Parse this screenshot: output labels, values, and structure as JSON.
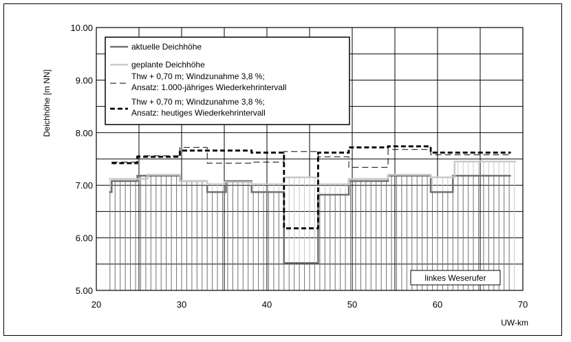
{
  "chart_data": {
    "type": "line",
    "title": "",
    "xlabel": "UW-km",
    "ylabel": "Deichhöhe [m NN]",
    "xlim": [
      20,
      70
    ],
    "ylim": [
      5.0,
      10.0
    ],
    "x_ticks": [
      "20",
      "30",
      "40",
      "50",
      "60",
      "70"
    ],
    "y_ticks": [
      "5.00",
      "6.00",
      "7.00",
      "8.00",
      "9.00",
      "10.00"
    ],
    "grid": true,
    "legend_position": "top-left",
    "reference_line": 7.5,
    "annotation": "linkes Weserufer",
    "series": [
      {
        "name": "aktuelle Deichhöhe",
        "style": "solid-dark",
        "color": "#707070",
        "points": [
          [
            21.5,
            6.87
          ],
          [
            21.8,
            6.87
          ],
          [
            21.8,
            7.08
          ],
          [
            24.8,
            7.08
          ],
          [
            24.8,
            7.18
          ],
          [
            29.8,
            7.18
          ],
          [
            29.8,
            7.08
          ],
          [
            33.0,
            7.08
          ],
          [
            33.0,
            6.87
          ],
          [
            35.2,
            6.87
          ],
          [
            35.2,
            7.08
          ],
          [
            38.2,
            7.08
          ],
          [
            38.2,
            6.87
          ],
          [
            42.0,
            6.87
          ],
          [
            42.0,
            5.52
          ],
          [
            46.0,
            5.52
          ],
          [
            46.0,
            6.82
          ],
          [
            49.6,
            6.82
          ],
          [
            49.6,
            7.08
          ],
          [
            54.2,
            7.08
          ],
          [
            54.2,
            7.18
          ],
          [
            59.2,
            7.18
          ],
          [
            59.2,
            6.87
          ],
          [
            61.8,
            6.87
          ],
          [
            61.8,
            7.18
          ],
          [
            68.6,
            7.18
          ]
        ]
      },
      {
        "name": "geplante Deichhöhe",
        "style": "solid-light",
        "color": "#c8c8c8",
        "points": [
          [
            21.5,
            7.12
          ],
          [
            26.0,
            7.12
          ],
          [
            26.0,
            7.2
          ],
          [
            29.8,
            7.2
          ],
          [
            29.8,
            7.08
          ],
          [
            33.0,
            7.08
          ],
          [
            33.0,
            7.02
          ],
          [
            35.0,
            7.02
          ],
          [
            35.0,
            7.06
          ],
          [
            38.2,
            7.06
          ],
          [
            38.2,
            7.02
          ],
          [
            42.0,
            7.02
          ],
          [
            42.0,
            7.15
          ],
          [
            46.0,
            7.15
          ],
          [
            46.0,
            7.02
          ],
          [
            49.6,
            7.02
          ],
          [
            49.6,
            7.12
          ],
          [
            54.2,
            7.12
          ],
          [
            54.2,
            7.2
          ],
          [
            59.2,
            7.2
          ],
          [
            59.2,
            7.15
          ],
          [
            62.0,
            7.15
          ],
          [
            62.0,
            7.45
          ],
          [
            69.2,
            7.45
          ]
        ]
      },
      {
        "name": "Thw + 0,70 m; Windzunahme 3,8 %; Ansatz: 1.000-jähriges Wiederkehrintervall",
        "style": "dashed-thin",
        "color": "#000000",
        "points": [
          [
            21.8,
            7.44
          ],
          [
            24.8,
            7.44
          ],
          [
            24.8,
            7.56
          ],
          [
            29.8,
            7.56
          ],
          [
            29.8,
            7.72
          ],
          [
            33.0,
            7.72
          ],
          [
            33.0,
            7.42
          ],
          [
            38.2,
            7.42
          ],
          [
            38.2,
            7.44
          ],
          [
            42.0,
            7.44
          ],
          [
            42.0,
            7.64
          ],
          [
            46.0,
            7.64
          ],
          [
            46.0,
            7.54
          ],
          [
            49.6,
            7.54
          ],
          [
            49.6,
            7.34
          ],
          [
            54.2,
            7.34
          ],
          [
            54.2,
            7.68
          ],
          [
            59.2,
            7.68
          ],
          [
            59.2,
            7.58
          ],
          [
            68.6,
            7.58
          ]
        ]
      },
      {
        "name": "Thw + 0,70 m; Windzunahme 3,8 %; Ansatz: heutiges Wiederkehrintervall",
        "style": "dashed-thick",
        "color": "#000000",
        "points": [
          [
            21.8,
            7.42
          ],
          [
            24.8,
            7.42
          ],
          [
            24.8,
            7.54
          ],
          [
            29.8,
            7.54
          ],
          [
            29.8,
            7.66
          ],
          [
            38.2,
            7.66
          ],
          [
            38.2,
            7.62
          ],
          [
            42.0,
            7.62
          ],
          [
            42.0,
            6.18
          ],
          [
            46.0,
            6.18
          ],
          [
            46.0,
            7.62
          ],
          [
            49.6,
            7.62
          ],
          [
            49.6,
            7.72
          ],
          [
            54.2,
            7.72
          ],
          [
            54.2,
            7.74
          ],
          [
            59.2,
            7.74
          ],
          [
            59.2,
            7.62
          ],
          [
            68.6,
            7.62
          ]
        ]
      }
    ],
    "legend": [
      {
        "lines": [
          "aktuelle Deichhöhe"
        ]
      },
      {
        "lines": [
          "geplante Deichhöhe"
        ]
      },
      {
        "lines": [
          "Thw + 0,70 m; Windzunahme 3,8 %;",
          "Ansatz: 1.000-jähriges Wiederkehrintervall"
        ]
      },
      {
        "lines": [
          "Thw + 0,70 m; Windzunahme 3,8 %;",
          "Ansatz: heutiges Wiederkehrintervall"
        ]
      }
    ]
  }
}
